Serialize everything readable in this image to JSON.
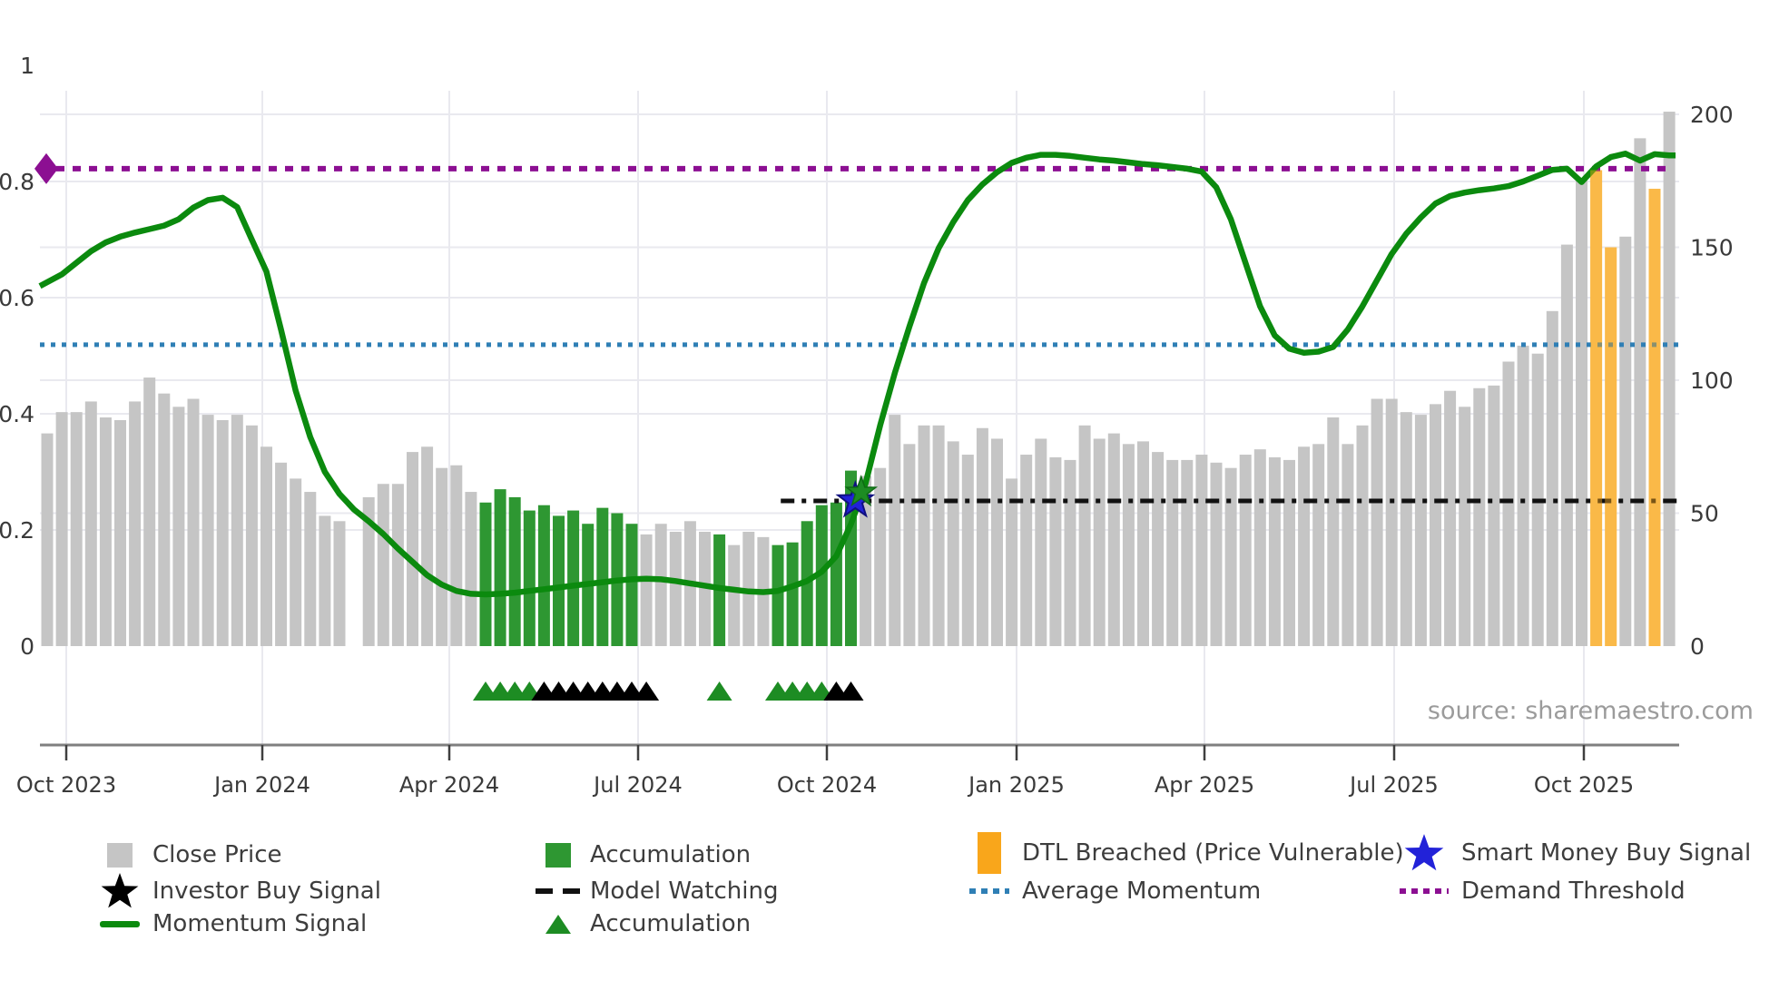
{
  "source_note": "source: sharemaestro.com",
  "colors": {
    "close_price_bar": "#c5c5c5",
    "accumulation_bar": "#2e9732",
    "dtl_breached_bar": "#fcc96d",
    "dtl_breached_legend": "#f9a61b",
    "momentum_line": "#0b8a0e",
    "average_momentum": "#2f7fb5",
    "demand_threshold": "#8c0f92",
    "model_watching": "#111111",
    "smart_money_star": "#2222d8",
    "accumulation_marker": "#1d8c23",
    "investor_star": "#000000",
    "grid": "#e9e9ef",
    "axis": "#7f7f7f",
    "tick_label": "#3a3a3a"
  },
  "legend": {
    "close_price": "Close Price",
    "investor_buy": "Investor Buy Signal",
    "momentum": "Momentum Signal",
    "accumulation_bar": "Accumulation",
    "model_watching": "Model Watching",
    "accumulation_marker": "Accumulation",
    "dtl_breached": "DTL Breached (Price Vulnerable)",
    "avg_momentum": "Average Momentum",
    "smart_money": "Smart Money Buy Signal",
    "demand_threshold": "Demand Threshold"
  },
  "chart_data": {
    "type": "bar+line",
    "x_tick_labels": [
      "Oct 2023",
      "Jan 2024",
      "Apr 2024",
      "Jul 2024",
      "Oct 2024",
      "Jan 2025",
      "Apr 2025",
      "Jul 2025",
      "Oct 2025"
    ],
    "left_axis": {
      "tick_labels": [
        "0",
        "0.2",
        "0.4",
        "0.6",
        "0.8",
        "1"
      ],
      "ticks": [
        0,
        0.2,
        0.4,
        0.6,
        0.8,
        1
      ],
      "range": [
        0,
        1
      ]
    },
    "right_axis": {
      "tick_labels": [
        "0",
        "50",
        "100",
        "150",
        "200"
      ],
      "ticks": [
        0,
        50,
        100,
        150,
        200
      ],
      "range": [
        0,
        200
      ]
    },
    "bars": {
      "name": "Close Price (weekly)",
      "values": [
        80,
        88,
        88,
        92,
        86,
        85,
        92,
        101,
        95,
        90,
        93,
        87,
        85,
        87,
        83,
        75,
        69,
        63,
        58,
        49,
        47,
        0,
        56,
        61,
        61,
        73,
        75,
        67,
        68,
        58,
        54,
        59,
        56,
        51,
        53,
        49,
        51,
        46,
        52,
        50,
        46,
        42,
        46,
        43,
        47,
        43,
        42,
        38,
        43,
        41,
        38,
        39,
        47,
        53,
        54,
        66,
        64,
        67,
        87,
        76,
        83,
        83,
        77,
        72,
        82,
        78,
        63,
        72,
        78,
        71,
        70,
        83,
        78,
        80,
        76,
        77,
        73,
        70,
        70,
        72,
        69,
        67,
        72,
        74,
        71,
        70,
        75,
        76,
        86,
        76,
        83,
        93,
        93,
        88,
        87,
        91,
        96,
        90,
        97,
        98,
        107,
        113,
        110,
        126,
        151,
        176,
        179,
        150,
        154,
        191,
        172,
        201
      ],
      "states": "gggggggggggggggggggggxggggggggaaaaaaaaaaagggggagggaaaaaaggggggggggggggggggggggggggggggggggggggggggggggggggddggdgd",
      "state_key": {
        "g": "close-price",
        "a": "accumulation",
        "d": "dtl-breached",
        "x": "no-data"
      }
    },
    "momentum_signal": {
      "name": "Momentum Signal",
      "values": [
        0.62,
        0.64,
        0.66,
        0.68,
        0.695,
        0.705,
        0.712,
        0.718,
        0.724,
        0.735,
        0.755,
        0.768,
        0.772,
        0.756,
        0.7,
        0.645,
        0.545,
        0.44,
        0.36,
        0.3,
        0.262,
        0.235,
        0.215,
        0.193,
        0.168,
        0.145,
        0.122,
        0.106,
        0.095,
        0.09,
        0.089,
        0.09,
        0.092,
        0.095,
        0.098,
        0.101,
        0.104,
        0.107,
        0.11,
        0.113,
        0.115,
        0.116,
        0.115,
        0.112,
        0.108,
        0.104,
        0.1,
        0.097,
        0.094,
        0.093,
        0.095,
        0.103,
        0.112,
        0.128,
        0.155,
        0.21,
        0.28,
        0.38,
        0.47,
        0.55,
        0.625,
        0.685,
        0.73,
        0.768,
        0.795,
        0.816,
        0.832,
        0.841,
        0.846,
        0.846,
        0.844,
        0.841,
        0.838,
        0.836,
        0.833,
        0.83,
        0.828,
        0.825,
        0.822,
        0.817,
        0.79,
        0.735,
        0.66,
        0.585,
        0.535,
        0.512,
        0.505,
        0.507,
        0.515,
        0.545,
        0.585,
        0.63,
        0.675,
        0.71,
        0.738,
        0.762,
        0.775,
        0.781,
        0.785,
        0.788,
        0.792,
        0.8,
        0.81,
        0.82,
        0.822,
        0.799,
        0.826,
        0.842,
        0.848,
        0.836,
        0.847,
        0.845
      ]
    },
    "average_momentum_level": 0.519,
    "demand_threshold_level": 0.822,
    "model_watching": {
      "level": 0.25,
      "start_index": 50.2,
      "end_index": 111.8
    },
    "accumulation_triangles": [
      30,
      31,
      32,
      33,
      46,
      50,
      51,
      52,
      53
    ],
    "watch_triangles": [
      34,
      35,
      36,
      37,
      38,
      39,
      40,
      41,
      54,
      55
    ],
    "smart_money_buy_signal": {
      "index": 55.3,
      "value": 0.25
    },
    "accumulation_star": {
      "index": 55.7,
      "value": 0.265
    },
    "demand_marker_value": 0.822
  }
}
